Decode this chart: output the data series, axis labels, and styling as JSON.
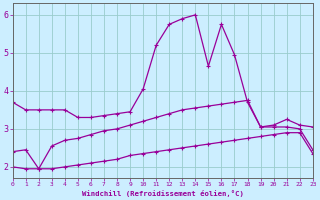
{
  "xlabel": "Windchill (Refroidissement éolien,°C)",
  "bg_color": "#cceeff",
  "grid_color": "#99cccc",
  "line_color": "#990099",
  "x": [
    0,
    1,
    2,
    3,
    4,
    5,
    6,
    7,
    8,
    9,
    10,
    11,
    12,
    13,
    14,
    15,
    16,
    17,
    18,
    19,
    20,
    21,
    22,
    23
  ],
  "line1": [
    3.7,
    3.5,
    3.5,
    3.5,
    3.5,
    3.3,
    3.3,
    3.35,
    3.4,
    3.45,
    4.05,
    5.2,
    5.75,
    5.9,
    6.0,
    4.65,
    5.75,
    4.95,
    3.7,
    3.05,
    3.1,
    3.25,
    3.1,
    3.05
  ],
  "line2": [
    2.4,
    2.45,
    1.95,
    2.55,
    2.7,
    2.75,
    2.85,
    2.95,
    3.0,
    3.1,
    3.2,
    3.3,
    3.4,
    3.5,
    3.55,
    3.6,
    3.65,
    3.7,
    3.75,
    3.05,
    3.05,
    3.05,
    3.0,
    2.45
  ],
  "line3": [
    2.0,
    1.95,
    1.95,
    1.95,
    2.0,
    2.05,
    2.1,
    2.15,
    2.2,
    2.3,
    2.35,
    2.4,
    2.45,
    2.5,
    2.55,
    2.6,
    2.65,
    2.7,
    2.75,
    2.8,
    2.85,
    2.9,
    2.9,
    2.35
  ],
  "ylim": [
    1.7,
    6.3
  ],
  "xlim": [
    0,
    23
  ],
  "yticks": [
    2,
    3,
    4,
    5,
    6
  ],
  "xticks": [
    0,
    1,
    2,
    3,
    4,
    5,
    6,
    7,
    8,
    9,
    10,
    11,
    12,
    13,
    14,
    15,
    16,
    17,
    18,
    19,
    20,
    21,
    22,
    23
  ]
}
